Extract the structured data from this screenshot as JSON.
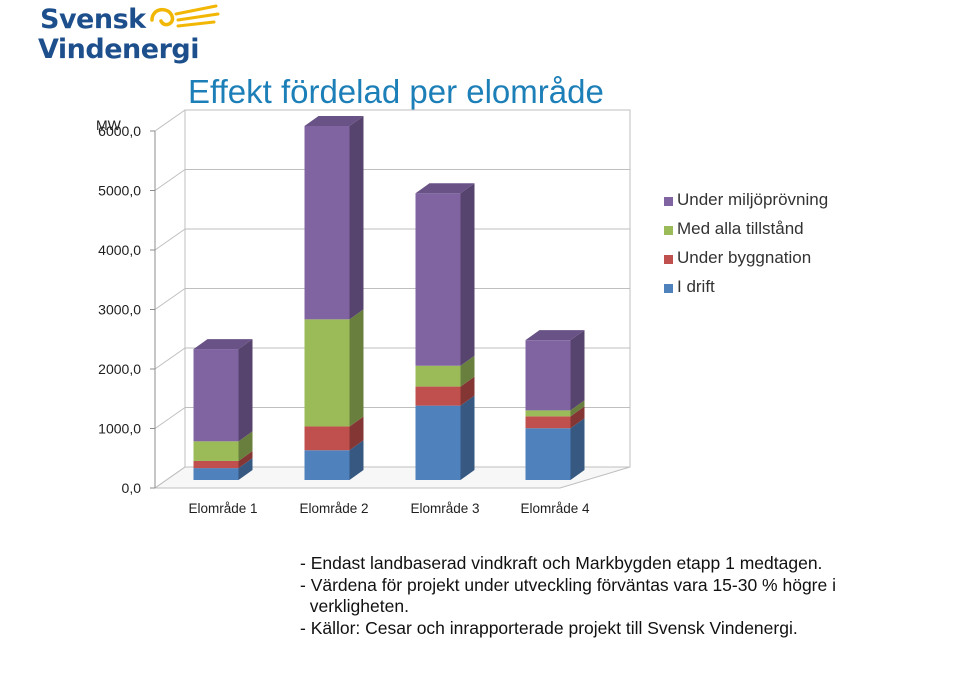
{
  "logo": {
    "line1": "Svensk",
    "line2": "Vindenergi"
  },
  "chart_data": {
    "type": "bar",
    "stacked": true,
    "three_d": true,
    "title": "Effekt fördelad per elområde",
    "ylabel": "MW",
    "xlabel": "",
    "categories": [
      "Elområde 1",
      "Elområde 2",
      "Elområde 3",
      "Elområde 4"
    ],
    "series": [
      {
        "name": "I drift",
        "color": "#4f81bd",
        "values": [
          200,
          500,
          1250,
          870
        ]
      },
      {
        "name": "Under byggnation",
        "color": "#c0504d",
        "values": [
          120,
          400,
          320,
          200
        ]
      },
      {
        "name": "Med alla tillstånd",
        "color": "#9bbb59",
        "values": [
          330,
          1800,
          350,
          100
        ]
      },
      {
        "name": "Under miljöprövning",
        "color": "#8064a2",
        "values": [
          1550,
          3250,
          2900,
          1180
        ]
      }
    ],
    "ylim": [
      0,
      6000
    ],
    "yticks": [
      "0,0",
      "1000,0",
      "2000,0",
      "3000,0",
      "4000,0",
      "5000,0",
      "6000,0"
    ],
    "grid": true,
    "legend_position": "right",
    "legend_order": [
      "Under miljöprövning",
      "Med alla tillstånd",
      "Under byggnation",
      "I drift"
    ]
  },
  "notes": [
    "- Endast landbaserad vindkraft och Markbygden etapp 1 medtagen.",
    "- Värdena för projekt under utveckling förväntas vara 15-30 % högre i",
    "  verkligheten.",
    "- Källor: Cesar och inrapporterade projekt till Svensk Vindenergi."
  ]
}
